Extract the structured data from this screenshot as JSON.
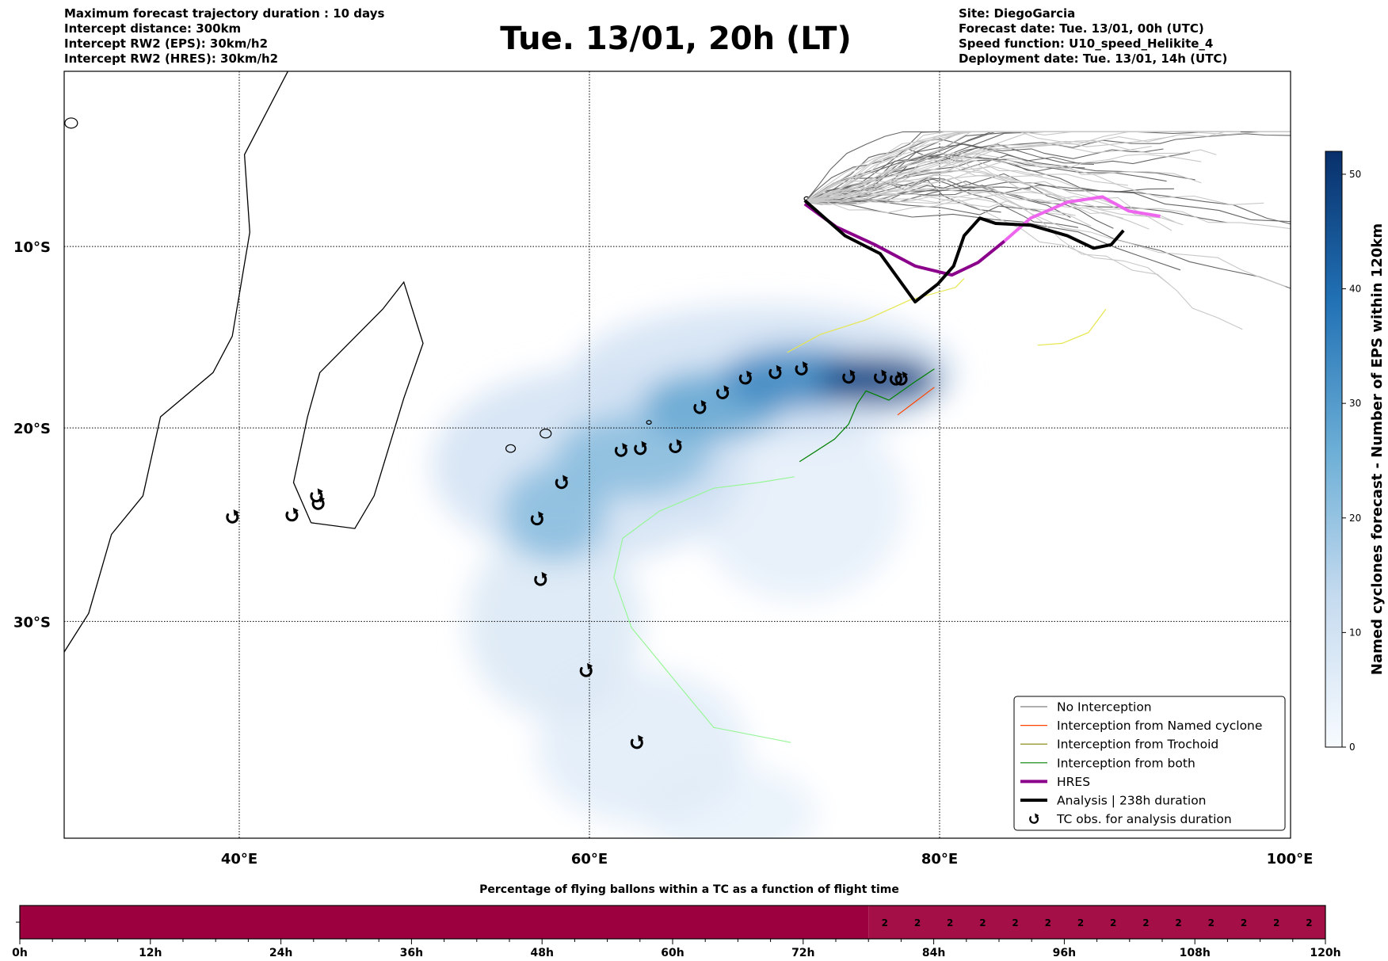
{
  "header": {
    "left": [
      "Maximum forecast trajectory duration : 10 days",
      "Intercept distance: 300km",
      "Intercept RW2 (EPS):  30km/h2",
      "Intercept RW2 (HRES): 30km/h2"
    ],
    "title": "Tue. 13/01, 20h (LT)",
    "right": [
      "Site: DiegoGarcia",
      "Forecast date: Tue. 13/01, 00h (UTC)",
      "Speed function: U10_speed_Helikite_4",
      "Deployment date: Tue. 13/01, 14h (UTC)"
    ]
  },
  "chart_data": [
    {
      "type": "map",
      "projection": "mercator",
      "lon_range": [
        30,
        100
      ],
      "lat_range": [
        -40.5,
        0
      ],
      "lon_ticks": [
        {
          "v": 40,
          "label": "40°E"
        },
        {
          "v": 60,
          "label": "60°E"
        },
        {
          "v": 80,
          "label": "80°E"
        },
        {
          "v": 100,
          "label": "100°E"
        }
      ],
      "lat_ticks": [
        {
          "v": -10,
          "label": "10°S"
        },
        {
          "v": -20,
          "label": "20°S"
        },
        {
          "v": -30,
          "label": "30°S"
        }
      ],
      "grid": "dotted",
      "legend_placement": "bottom-right",
      "legend": [
        {
          "label": "No Interception",
          "color": "#808080",
          "width": 1.2
        },
        {
          "label": "Interception from Named cyclone",
          "color": "#ff4500",
          "width": 1.2
        },
        {
          "label": "Interception from Trochoid",
          "color": "#808000",
          "width": 1.2
        },
        {
          "label": "Interception from both",
          "color": "#008000",
          "width": 1.2
        },
        {
          "label": "HRES",
          "color": "#8b008b",
          "width": 4
        },
        {
          "label": "Analysis | 238h duration",
          "color": "#000000",
          "width": 4
        },
        {
          "label": "TC obs. for analysis duration",
          "symbol": "cyclone"
        }
      ],
      "colorbar": {
        "label": "Named cyclones forecast - Number of EPS within 120km",
        "range": [
          0,
          52
        ],
        "ticks": [
          0,
          10,
          20,
          30,
          40,
          50
        ],
        "color_low": "#f7fbff",
        "color_high": "#08306b"
      },
      "density_blobs": [
        {
          "lon": 76.5,
          "lat": -17.4,
          "rlon": 3.5,
          "rlat": 1.3,
          "value": 48
        },
        {
          "lon": 72,
          "lat": -17.3,
          "rlon": 4.5,
          "rlat": 1.6,
          "value": 35
        },
        {
          "lon": 67,
          "lat": -18.8,
          "rlon": 4,
          "rlat": 1.8,
          "value": 28
        },
        {
          "lon": 62.5,
          "lat": -21.5,
          "rlon": 4.5,
          "rlat": 2.2,
          "value": 22
        },
        {
          "lon": 58,
          "lat": -24.5,
          "rlon": 3,
          "rlat": 2.5,
          "value": 22
        },
        {
          "lon": 60,
          "lat": -22,
          "rlon": 9,
          "rlat": 5,
          "value": 10
        },
        {
          "lon": 70,
          "lat": -17,
          "rlon": 11,
          "rlat": 3.5,
          "value": 10
        },
        {
          "lon": 58,
          "lat": -30,
          "rlon": 5,
          "rlat": 5,
          "value": 8
        },
        {
          "lon": 63,
          "lat": -36,
          "rlon": 6,
          "rlat": 4,
          "value": 6
        },
        {
          "lon": 68,
          "lat": -39,
          "rlon": 5,
          "rlat": 2.5,
          "value": 4
        },
        {
          "lon": 72,
          "lat": -24,
          "rlon": 6,
          "rlat": 5,
          "value": 5
        }
      ],
      "tc_obs": [
        [
          39.6,
          -24.7
        ],
        [
          43.0,
          -24.6
        ],
        [
          44.4,
          -23.6
        ],
        [
          44.5,
          -24.0
        ],
        [
          57.0,
          -24.8
        ],
        [
          58.4,
          -22.9
        ],
        [
          57.2,
          -27.9
        ],
        [
          59.8,
          -32.4
        ],
        [
          62.7,
          -35.8
        ],
        [
          61.8,
          -21.2
        ],
        [
          62.9,
          -21.1
        ],
        [
          64.9,
          -21.0
        ],
        [
          66.3,
          -18.9
        ],
        [
          67.6,
          -18.1
        ],
        [
          68.9,
          -17.3
        ],
        [
          70.6,
          -17.0
        ],
        [
          72.1,
          -16.8
        ],
        [
          74.8,
          -17.25
        ],
        [
          76.6,
          -17.25
        ],
        [
          77.5,
          -17.35
        ],
        [
          77.8,
          -17.35
        ]
      ],
      "analysis_track": [
        [
          72.3,
          -7.4
        ],
        [
          74.6,
          -9.4
        ],
        [
          76.6,
          -10.4
        ],
        [
          78.6,
          -13.1
        ],
        [
          79.9,
          -12.1
        ],
        [
          80.8,
          -11.1
        ],
        [
          81.4,
          -9.4
        ],
        [
          82.3,
          -8.4
        ],
        [
          83.2,
          -8.7
        ],
        [
          85.2,
          -8.8
        ],
        [
          87.3,
          -9.4
        ],
        [
          88.8,
          -10.1
        ],
        [
          89.8,
          -9.9
        ],
        [
          90.5,
          -9.1
        ]
      ],
      "hres_track": [
        [
          72.3,
          -7.6
        ],
        [
          74.1,
          -8.9
        ],
        [
          76.3,
          -9.9
        ],
        [
          78.6,
          -11.1
        ],
        [
          80.7,
          -11.6
        ],
        [
          82.2,
          -10.9
        ],
        [
          83.7,
          -9.7
        ],
        [
          85.2,
          -8.4
        ],
        [
          87.3,
          -7.5
        ],
        [
          89.3,
          -7.2
        ],
        [
          90.8,
          -8.0
        ],
        [
          92.6,
          -8.3
        ]
      ],
      "trochoid_track": [
        [
          71.3,
          -15.9
        ],
        [
          73.2,
          -14.9
        ],
        [
          75.8,
          -14.1
        ],
        [
          78.3,
          -13.0
        ],
        [
          80.9,
          -12.3
        ],
        [
          81.4,
          -11.8
        ]
      ],
      "named_cyclone_track": [
        [
          77.6,
          -19.3
        ],
        [
          79.7,
          -17.8
        ]
      ],
      "both_track": [
        [
          72.0,
          -21.8
        ],
        [
          74.0,
          -20.6
        ],
        [
          74.8,
          -19.8
        ],
        [
          75.3,
          -18.7
        ],
        [
          75.8,
          -18.0
        ],
        [
          77.1,
          -18.5
        ],
        [
          78.6,
          -17.5
        ],
        [
          79.7,
          -16.8
        ]
      ],
      "both_light_track": [
        [
          71.5,
          -35.8
        ],
        [
          67.1,
          -35.1
        ],
        [
          65.0,
          -33.0
        ],
        [
          62.4,
          -30.3
        ],
        [
          61.4,
          -27.8
        ],
        [
          61.9,
          -25.8
        ],
        [
          64.0,
          -24.4
        ],
        [
          67.1,
          -23.2
        ],
        [
          69.7,
          -22.9
        ],
        [
          71.7,
          -22.6
        ]
      ]
    },
    {
      "type": "heatmap",
      "title": "Percentage of flying ballons within a TC as a function of flight time",
      "x_range_h": [
        0,
        120
      ],
      "x_ticks": [
        {
          "v": 0,
          "label": "0h"
        },
        {
          "v": 12,
          "label": "12h"
        },
        {
          "v": 24,
          "label": "24h"
        },
        {
          "v": 36,
          "label": "36h"
        },
        {
          "v": 48,
          "label": "48h"
        },
        {
          "v": 60,
          "label": "60h"
        },
        {
          "v": 72,
          "label": "72h"
        },
        {
          "v": 84,
          "label": "84h"
        },
        {
          "v": 96,
          "label": "96h"
        },
        {
          "v": 108,
          "label": "108h"
        },
        {
          "v": 120,
          "label": "120h"
        }
      ],
      "segments": [
        {
          "from": 0,
          "to": 78,
          "value": 0,
          "color": "#9c003f"
        },
        {
          "from": 78,
          "to": 120,
          "value": 2,
          "color": "#a50f47"
        }
      ],
      "cell_labels": [
        {
          "h": 79.5,
          "label": "2"
        },
        {
          "h": 82.5,
          "label": "2"
        },
        {
          "h": 85.5,
          "label": "2"
        },
        {
          "h": 88.5,
          "label": "2"
        },
        {
          "h": 91.5,
          "label": "2"
        },
        {
          "h": 94.5,
          "label": "2"
        },
        {
          "h": 97.5,
          "label": "2"
        },
        {
          "h": 100.5,
          "label": "2"
        },
        {
          "h": 103.5,
          "label": "2"
        },
        {
          "h": 106.5,
          "label": "2"
        },
        {
          "h": 109.5,
          "label": "2"
        },
        {
          "h": 112.5,
          "label": "2"
        },
        {
          "h": 115.5,
          "label": "2"
        },
        {
          "h": 118.5,
          "label": "2"
        }
      ]
    }
  ]
}
